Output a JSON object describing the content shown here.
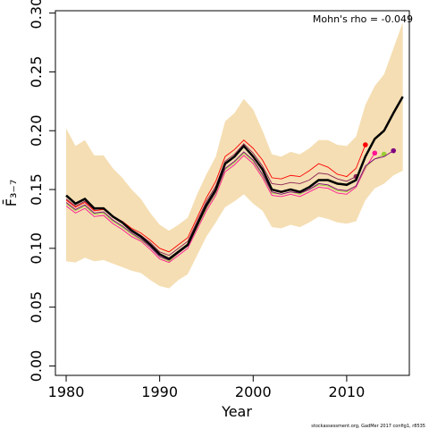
{
  "chart_data": {
    "type": "line",
    "annotation": "Mohn's rho = -0.049",
    "footer": "stockassessment.org, GadMer 2017 config1, r8535",
    "xlabel": "Year",
    "ylabel": "F̄₃₋₇",
    "x": [
      1980,
      1981,
      1982,
      1983,
      1984,
      1985,
      1986,
      1987,
      1988,
      1989,
      1990,
      1991,
      1992,
      1993,
      1994,
      1995,
      1996,
      1997,
      1998,
      1999,
      2000,
      2001,
      2002,
      2003,
      2004,
      2005,
      2006,
      2007,
      2008,
      2009,
      2010,
      2011,
      2012,
      2013,
      2014,
      2015,
      2016
    ],
    "xlim": [
      1978.85,
      2016.7
    ],
    "xticks": [
      1980,
      1990,
      2000,
      2010
    ],
    "ylim": [
      -0.008,
      0.302
    ],
    "yticks": [
      {
        "value": 0,
        "label": "0.00"
      },
      {
        "value": 0.05,
        "label": "0.05"
      },
      {
        "value": 0.1,
        "label": "0.10"
      },
      {
        "value": 0.15,
        "label": "0.15"
      },
      {
        "value": 0.2,
        "label": "0.20"
      },
      {
        "value": 0.25,
        "label": "0.25"
      },
      {
        "value": 0.3,
        "label": "0.30"
      }
    ],
    "band": {
      "color": "#f5deb3",
      "upper": [
        0.202,
        0.187,
        0.192,
        0.179,
        0.179,
        0.168,
        0.16,
        0.15,
        0.142,
        0.13,
        0.12,
        0.115,
        0.12,
        0.126,
        0.146,
        0.163,
        0.178,
        0.208,
        0.215,
        0.227,
        0.218,
        0.2,
        0.18,
        0.178,
        0.182,
        0.18,
        0.185,
        0.192,
        0.192,
        0.188,
        0.187,
        0.195,
        0.222,
        0.238,
        0.248,
        0.27,
        0.292
      ],
      "lower": [
        0.089,
        0.088,
        0.092,
        0.089,
        0.09,
        0.087,
        0.084,
        0.081,
        0.079,
        0.073,
        0.068,
        0.066,
        0.073,
        0.078,
        0.094,
        0.11,
        0.122,
        0.135,
        0.14,
        0.146,
        0.138,
        0.132,
        0.118,
        0.117,
        0.12,
        0.118,
        0.122,
        0.127,
        0.125,
        0.122,
        0.121,
        0.123,
        0.141,
        0.151,
        0.155,
        0.162,
        0.166
      ]
    },
    "series": [
      {
        "color": "#8b2252",
        "values": [
          0.142,
          0.136,
          0.14,
          0.133,
          0.134,
          0.127,
          0.122,
          0.116,
          0.111,
          0.105,
          0.097,
          0.094,
          0.1,
          0.106,
          0.123,
          0.14,
          0.153,
          0.174,
          0.18,
          0.189,
          0.181,
          0.17,
          0.155,
          0.154,
          0.156,
          0.155,
          0.158,
          0.164,
          0.163,
          0.159,
          0.157,
          0.161,
          null,
          null,
          null,
          null,
          null
        ]
      },
      {
        "color": "#ff0000",
        "values": [
          0.141,
          0.135,
          0.139,
          0.132,
          0.133,
          0.127,
          0.123,
          0.117,
          0.113,
          0.107,
          0.1,
          0.097,
          0.103,
          0.109,
          0.126,
          0.143,
          0.157,
          0.178,
          0.184,
          0.192,
          0.185,
          0.175,
          0.16,
          0.159,
          0.162,
          0.161,
          0.166,
          0.172,
          0.169,
          0.163,
          0.161,
          0.168,
          0.188,
          null,
          null,
          null,
          null
        ]
      },
      {
        "color": "#ff1493",
        "values": [
          0.136,
          0.13,
          0.134,
          0.127,
          0.128,
          0.121,
          0.116,
          0.11,
          0.106,
          0.099,
          0.091,
          0.088,
          0.094,
          0.1,
          0.116,
          0.132,
          0.145,
          0.165,
          0.171,
          0.179,
          0.172,
          0.16,
          0.145,
          0.144,
          0.146,
          0.144,
          0.148,
          0.152,
          0.151,
          0.147,
          0.146,
          0.152,
          0.168,
          0.181,
          null,
          null,
          null
        ]
      },
      {
        "color": "#9acd32",
        "values": [
          0.138,
          0.132,
          0.136,
          0.129,
          0.13,
          0.123,
          0.118,
          0.112,
          0.107,
          0.101,
          0.093,
          0.089,
          0.096,
          0.102,
          0.118,
          0.134,
          0.147,
          0.167,
          0.173,
          0.181,
          0.174,
          0.162,
          0.147,
          0.146,
          0.148,
          0.146,
          0.15,
          0.154,
          0.153,
          0.149,
          0.148,
          0.153,
          0.169,
          0.176,
          0.18,
          null,
          null
        ]
      },
      {
        "color": "#800080",
        "values": [
          0.139,
          0.133,
          0.137,
          0.13,
          0.131,
          0.124,
          0.119,
          0.113,
          0.108,
          0.101,
          0.093,
          0.09,
          0.096,
          0.102,
          0.119,
          0.135,
          0.148,
          0.168,
          0.174,
          0.182,
          0.175,
          0.163,
          0.148,
          0.146,
          0.148,
          0.147,
          0.15,
          0.155,
          0.154,
          0.15,
          0.149,
          0.153,
          0.17,
          0.176,
          0.178,
          0.183,
          null
        ]
      },
      {
        "color": "#000000",
        "values": [
          0.145,
          0.138,
          0.142,
          0.134,
          0.134,
          0.127,
          0.122,
          0.115,
          0.11,
          0.103,
          0.095,
          0.091,
          0.097,
          0.103,
          0.12,
          0.137,
          0.15,
          0.172,
          0.178,
          0.187,
          0.178,
          0.167,
          0.15,
          0.148,
          0.15,
          0.148,
          0.152,
          0.158,
          0.158,
          0.155,
          0.154,
          0.158,
          0.178,
          0.193,
          0.2,
          0.215,
          0.229
        ]
      }
    ]
  }
}
